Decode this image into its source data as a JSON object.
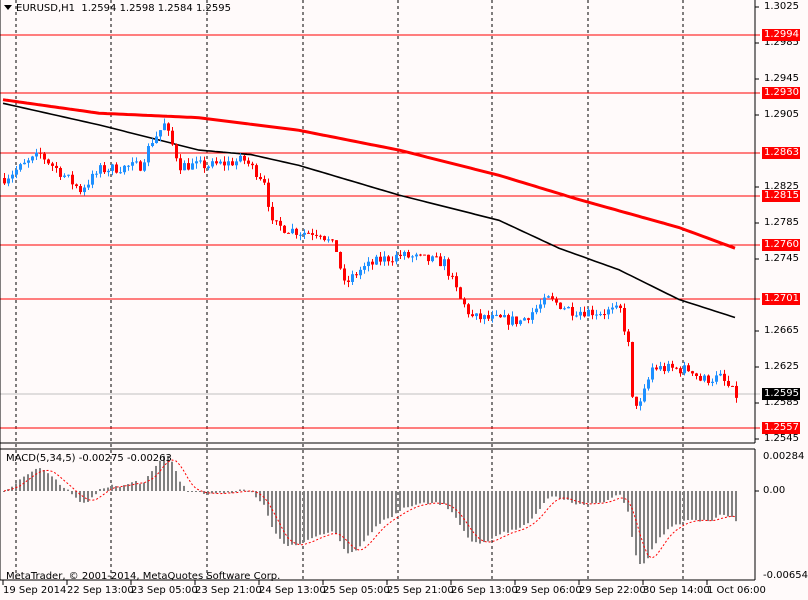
{
  "header": {
    "symbol": "EURUSD,H1",
    "open": "1.2594",
    "high": "1.2598",
    "low": "1.2584",
    "close": "1.2595"
  },
  "macd_header": {
    "label": "MACD(5,34,5)",
    "main": "-0.00275",
    "signal": "-0.00263"
  },
  "copyright": "MetaTrader, © 2001-2014, MetaQuotes Software Corp.",
  "colors": {
    "background": "#fffafa",
    "bull": "#1e90ff",
    "bear": "#ff0000",
    "ma_fast": "#000000",
    "ma_slow": "#ff0000",
    "level": "#ff0000",
    "macd_hist": "#808080",
    "macd_signal": "#ff0000"
  },
  "chart_data": {
    "type": "candlestick",
    "symbol": "EURUSD",
    "timeframe": "H1",
    "price_axis_ticks": [
      "1.3025",
      "1.2985",
      "1.2945",
      "1.2905",
      "1.2825",
      "1.2785",
      "1.2745",
      "1.2665",
      "1.2625",
      "1.2585",
      "1.2545"
    ],
    "price_range": [
      1.2545,
      1.3025
    ],
    "level_lines": [
      "1.2994",
      "1.2930",
      "1.2863",
      "1.2815",
      "1.2760",
      "1.2701",
      "1.2557"
    ],
    "current_price": "1.2595",
    "time_labels": [
      "19 Sep 2014",
      "22 Sep 13:00",
      "23 Sep 05:00",
      "23 Sep 21:00",
      "24 Sep 13:00",
      "25 Sep 05:00",
      "25 Sep 21:00",
      "26 Sep 13:00",
      "29 Sep 06:00",
      "29 Sep 22:00",
      "30 Sep 14:00",
      "1 Oct 06:00"
    ],
    "candle_count": 184,
    "price_path": [
      [
        0,
        1.2835
      ],
      [
        9,
        1.2861
      ],
      [
        19,
        1.2822
      ],
      [
        24,
        1.2844
      ],
      [
        34,
        1.2849
      ],
      [
        37,
        1.2877
      ],
      [
        40,
        1.2894
      ],
      [
        44,
        1.2849
      ],
      [
        52,
        1.2849
      ],
      [
        60,
        1.2855
      ],
      [
        65,
        1.2833
      ],
      [
        67,
        1.2783
      ],
      [
        74,
        1.2775
      ],
      [
        79,
        1.2775
      ],
      [
        83,
        1.2755
      ],
      [
        85,
        1.2716
      ],
      [
        89,
        1.2733
      ],
      [
        94,
        1.2744
      ],
      [
        99,
        1.2749
      ],
      [
        110,
        1.2741
      ],
      [
        114,
        1.27
      ],
      [
        117,
        1.268
      ],
      [
        129,
        1.2676
      ],
      [
        136,
        1.27
      ],
      [
        142,
        1.2688
      ],
      [
        149,
        1.2686
      ],
      [
        154,
        1.2688
      ],
      [
        156,
        1.2649
      ],
      [
        157,
        1.2588
      ],
      [
        159,
        1.2583
      ],
      [
        162,
        1.2624
      ],
      [
        172,
        1.2622
      ],
      [
        174,
        1.2611
      ],
      [
        179,
        1.2613
      ],
      [
        183,
        1.2593
      ]
    ],
    "ma_fast": [
      [
        0,
        1.2918
      ],
      [
        24,
        1.2894
      ],
      [
        49,
        1.2866
      ],
      [
        62,
        1.2861
      ],
      [
        74,
        1.2849
      ],
      [
        99,
        1.2816
      ],
      [
        124,
        1.2788
      ],
      [
        139,
        1.2757
      ],
      [
        154,
        1.2733
      ],
      [
        169,
        1.27
      ],
      [
        183,
        1.268
      ]
    ],
    "ma_slow": [
      [
        0,
        1.2922
      ],
      [
        24,
        1.2907
      ],
      [
        49,
        1.2902
      ],
      [
        74,
        1.2888
      ],
      [
        99,
        1.2866
      ],
      [
        124,
        1.2838
      ],
      [
        144,
        1.2811
      ],
      [
        169,
        1.278
      ],
      [
        183,
        1.2757
      ]
    ],
    "macd": {
      "params": "5,34,5",
      "axis_ticks": [
        "0.00284",
        "0.00",
        "-0.00654"
      ],
      "range": [
        -0.00654,
        0.00284
      ]
    }
  }
}
